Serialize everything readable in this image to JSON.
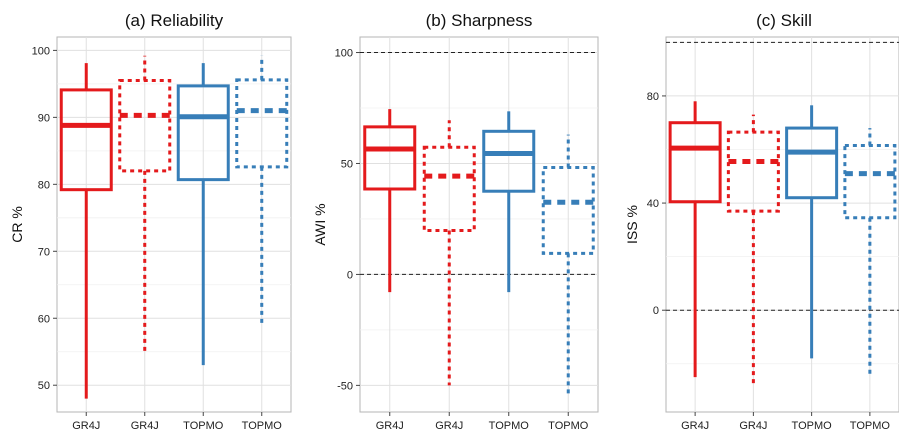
{
  "chart_data": [
    {
      "type": "box",
      "title": "(a) Reliability",
      "xlabel": "",
      "ylabel": "CR %",
      "ylim": [
        46,
        102
      ],
      "yticks": [
        50,
        60,
        70,
        80,
        90,
        100
      ],
      "reference_lines": [],
      "categories": [
        "GR4J",
        "GR4J",
        "TOPMO",
        "TOPMO"
      ],
      "boxes": [
        {
          "category": "GR4J",
          "color": "#e41a1c",
          "style": "solid",
          "whisker_low": 48,
          "q1": 79.2,
          "median": 88.8,
          "q3": 94.1,
          "whisker_high": 98.1
        },
        {
          "category": "GR4J",
          "color": "#e41a1c",
          "style": "dashed",
          "whisker_low": 55,
          "q1": 82.0,
          "median": 90.3,
          "q3": 95.5,
          "whisker_high": 99.2
        },
        {
          "category": "TOPMO",
          "color": "#377eb8",
          "style": "solid",
          "whisker_low": 53,
          "q1": 80.7,
          "median": 90.1,
          "q3": 94.7,
          "whisker_high": 98.1
        },
        {
          "category": "TOPMO",
          "color": "#377eb8",
          "style": "dashed",
          "whisker_low": 59,
          "q1": 82.6,
          "median": 91.0,
          "q3": 95.6,
          "whisker_high": 99.2
        }
      ]
    },
    {
      "type": "box",
      "title": "(b) Sharpness",
      "xlabel": "",
      "ylabel": "AWI %",
      "ylim": [
        -62,
        107
      ],
      "yticks": [
        -50,
        0,
        50,
        100
      ],
      "reference_lines": [
        0,
        100
      ],
      "categories": [
        "GR4J",
        "GR4J",
        "TOPMO",
        "TOPMO"
      ],
      "boxes": [
        {
          "category": "GR4J",
          "color": "#e41a1c",
          "style": "solid",
          "whisker_low": -8,
          "q1": 38.5,
          "median": 56.5,
          "q3": 66.5,
          "whisker_high": 74.5
        },
        {
          "category": "GR4J",
          "color": "#e41a1c",
          "style": "dashed",
          "whisker_low": -50,
          "q1": 19.8,
          "median": 44.3,
          "q3": 57.3,
          "whisker_high": 69.5
        },
        {
          "category": "TOPMO",
          "color": "#377eb8",
          "style": "solid",
          "whisker_low": -8,
          "q1": 37.5,
          "median": 54.5,
          "q3": 64.5,
          "whisker_high": 73.5
        },
        {
          "category": "TOPMO",
          "color": "#377eb8",
          "style": "dashed",
          "whisker_low": -55,
          "q1": 9.5,
          "median": 32.5,
          "q3": 48.2,
          "whisker_high": 63.0
        }
      ]
    },
    {
      "type": "box",
      "title": "(c) Skill",
      "xlabel": "",
      "ylabel": "ISS %",
      "ylim": [
        -38,
        102
      ],
      "yticks": [
        0,
        40,
        80
      ],
      "reference_lines": [
        0,
        100
      ],
      "categories": [
        "GR4J",
        "GR4J",
        "TOPMO",
        "TOPMO"
      ],
      "boxes": [
        {
          "category": "GR4J",
          "color": "#e41a1c",
          "style": "solid",
          "whisker_low": -25,
          "q1": 40.5,
          "median": 60.5,
          "q3": 70.0,
          "whisker_high": 78.0
        },
        {
          "category": "GR4J",
          "color": "#e41a1c",
          "style": "dashed",
          "whisker_low": -28,
          "q1": 37.0,
          "median": 55.5,
          "q3": 66.5,
          "whisker_high": 73.0
        },
        {
          "category": "TOPMO",
          "color": "#377eb8",
          "style": "solid",
          "whisker_low": -18,
          "q1": 42.0,
          "median": 59.0,
          "q3": 68.0,
          "whisker_high": 76.5
        },
        {
          "category": "TOPMO",
          "color": "#377eb8",
          "style": "dashed",
          "whisker_low": -25,
          "q1": 34.5,
          "median": 51.0,
          "q3": 61.5,
          "whisker_high": 68.0
        }
      ]
    }
  ]
}
